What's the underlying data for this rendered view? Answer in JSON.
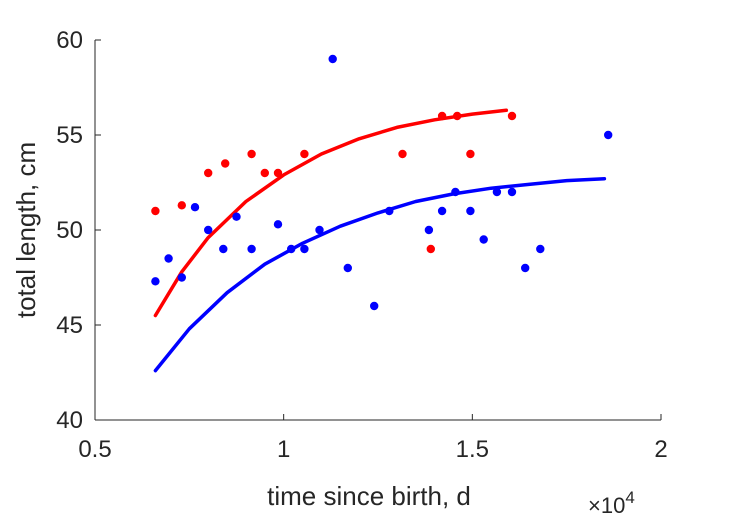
{
  "chart_data": {
    "type": "scatter",
    "xlabel": "time since birth, d",
    "ylabel": "total length, cm",
    "xlim": [
      5000,
      20000
    ],
    "ylim": [
      40,
      60
    ],
    "x_tick_labels": [
      "0.5",
      "1",
      "1.5",
      "2"
    ],
    "x_tick_values": [
      5000,
      10000,
      15000,
      20000
    ],
    "x_multiplier": {
      "base": "×10",
      "exponent": "4"
    },
    "y_tick_labels": [
      "40",
      "45",
      "50",
      "55",
      "60"
    ],
    "y_tick_values": [
      40,
      45,
      50,
      55,
      60
    ],
    "grid": false,
    "series": [
      {
        "color": "#ff0000",
        "points": [
          [
            6600,
            51.0
          ],
          [
            7300,
            51.3
          ],
          [
            8000,
            53.0
          ],
          [
            8450,
            53.5
          ],
          [
            9150,
            54.0
          ],
          [
            9500,
            53.0
          ],
          [
            9850,
            53.0
          ],
          [
            10550,
            54.0
          ],
          [
            13150,
            54.0
          ],
          [
            13900,
            49.0
          ],
          [
            14200,
            56.0
          ],
          [
            14600,
            56.0
          ],
          [
            14950,
            54.0
          ],
          [
            16050,
            56.0
          ]
        ],
        "fit": [
          [
            6600,
            45.5
          ],
          [
            7300,
            47.8
          ],
          [
            8000,
            49.6
          ],
          [
            9000,
            51.5
          ],
          [
            10000,
            52.9
          ],
          [
            11000,
            54.0
          ],
          [
            12000,
            54.8
          ],
          [
            13000,
            55.4
          ],
          [
            14000,
            55.8
          ],
          [
            15000,
            56.1
          ],
          [
            15900,
            56.3
          ]
        ]
      },
      {
        "color": "#0000ff",
        "points": [
          [
            6600,
            47.3
          ],
          [
            6950,
            48.5
          ],
          [
            7300,
            47.5
          ],
          [
            7650,
            51.2
          ],
          [
            8000,
            50.0
          ],
          [
            8400,
            49.0
          ],
          [
            8750,
            50.7
          ],
          [
            9150,
            49.0
          ],
          [
            9850,
            50.3
          ],
          [
            10200,
            49.0
          ],
          [
            10550,
            49.0
          ],
          [
            10950,
            50.0
          ],
          [
            11300,
            59.0
          ],
          [
            11700,
            48.0
          ],
          [
            12400,
            46.0
          ],
          [
            12800,
            51.0
          ],
          [
            13850,
            50.0
          ],
          [
            14200,
            51.0
          ],
          [
            14550,
            52.0
          ],
          [
            14950,
            51.0
          ],
          [
            15300,
            49.5
          ],
          [
            15650,
            52.0
          ],
          [
            16050,
            52.0
          ],
          [
            16400,
            48.0
          ],
          [
            16800,
            49.0
          ],
          [
            18600,
            55.0
          ]
        ],
        "fit": [
          [
            6600,
            42.6
          ],
          [
            7500,
            44.8
          ],
          [
            8500,
            46.7
          ],
          [
            9500,
            48.2
          ],
          [
            10500,
            49.3
          ],
          [
            11500,
            50.2
          ],
          [
            12500,
            50.9
          ],
          [
            13500,
            51.5
          ],
          [
            14500,
            51.9
          ],
          [
            15500,
            52.2
          ],
          [
            16500,
            52.4
          ],
          [
            17500,
            52.6
          ],
          [
            18500,
            52.7
          ]
        ]
      }
    ]
  }
}
